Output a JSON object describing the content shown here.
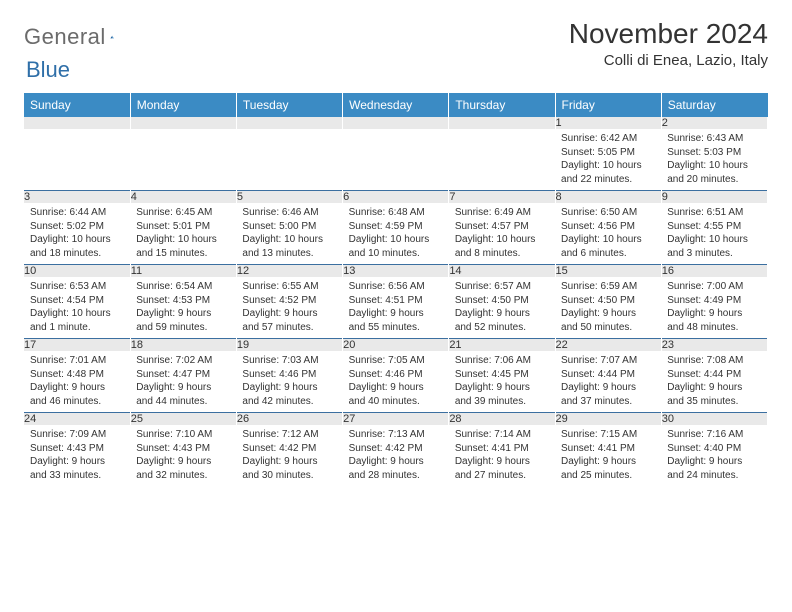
{
  "logo": {
    "text1": "General",
    "text2": "Blue"
  },
  "header": {
    "month_title": "November 2024",
    "location": "Colli di Enea, Lazio, Italy"
  },
  "colors": {
    "header_bg": "#3b8bc4",
    "header_text": "#ffffff",
    "daynum_bg": "#e9e9e9",
    "rule": "#3b6fa0",
    "logo_gray": "#6b6b6b",
    "logo_blue": "#2f6fa8"
  },
  "day_headers": [
    "Sunday",
    "Monday",
    "Tuesday",
    "Wednesday",
    "Thursday",
    "Friday",
    "Saturday"
  ],
  "weeks": [
    [
      {
        "n": "",
        "lines": []
      },
      {
        "n": "",
        "lines": []
      },
      {
        "n": "",
        "lines": []
      },
      {
        "n": "",
        "lines": []
      },
      {
        "n": "",
        "lines": []
      },
      {
        "n": "1",
        "lines": [
          "Sunrise: 6:42 AM",
          "Sunset: 5:05 PM",
          "Daylight: 10 hours",
          "and 22 minutes."
        ]
      },
      {
        "n": "2",
        "lines": [
          "Sunrise: 6:43 AM",
          "Sunset: 5:03 PM",
          "Daylight: 10 hours",
          "and 20 minutes."
        ]
      }
    ],
    [
      {
        "n": "3",
        "lines": [
          "Sunrise: 6:44 AM",
          "Sunset: 5:02 PM",
          "Daylight: 10 hours",
          "and 18 minutes."
        ]
      },
      {
        "n": "4",
        "lines": [
          "Sunrise: 6:45 AM",
          "Sunset: 5:01 PM",
          "Daylight: 10 hours",
          "and 15 minutes."
        ]
      },
      {
        "n": "5",
        "lines": [
          "Sunrise: 6:46 AM",
          "Sunset: 5:00 PM",
          "Daylight: 10 hours",
          "and 13 minutes."
        ]
      },
      {
        "n": "6",
        "lines": [
          "Sunrise: 6:48 AM",
          "Sunset: 4:59 PM",
          "Daylight: 10 hours",
          "and 10 minutes."
        ]
      },
      {
        "n": "7",
        "lines": [
          "Sunrise: 6:49 AM",
          "Sunset: 4:57 PM",
          "Daylight: 10 hours",
          "and 8 minutes."
        ]
      },
      {
        "n": "8",
        "lines": [
          "Sunrise: 6:50 AM",
          "Sunset: 4:56 PM",
          "Daylight: 10 hours",
          "and 6 minutes."
        ]
      },
      {
        "n": "9",
        "lines": [
          "Sunrise: 6:51 AM",
          "Sunset: 4:55 PM",
          "Daylight: 10 hours",
          "and 3 minutes."
        ]
      }
    ],
    [
      {
        "n": "10",
        "lines": [
          "Sunrise: 6:53 AM",
          "Sunset: 4:54 PM",
          "Daylight: 10 hours",
          "and 1 minute."
        ]
      },
      {
        "n": "11",
        "lines": [
          "Sunrise: 6:54 AM",
          "Sunset: 4:53 PM",
          "Daylight: 9 hours",
          "and 59 minutes."
        ]
      },
      {
        "n": "12",
        "lines": [
          "Sunrise: 6:55 AM",
          "Sunset: 4:52 PM",
          "Daylight: 9 hours",
          "and 57 minutes."
        ]
      },
      {
        "n": "13",
        "lines": [
          "Sunrise: 6:56 AM",
          "Sunset: 4:51 PM",
          "Daylight: 9 hours",
          "and 55 minutes."
        ]
      },
      {
        "n": "14",
        "lines": [
          "Sunrise: 6:57 AM",
          "Sunset: 4:50 PM",
          "Daylight: 9 hours",
          "and 52 minutes."
        ]
      },
      {
        "n": "15",
        "lines": [
          "Sunrise: 6:59 AM",
          "Sunset: 4:50 PM",
          "Daylight: 9 hours",
          "and 50 minutes."
        ]
      },
      {
        "n": "16",
        "lines": [
          "Sunrise: 7:00 AM",
          "Sunset: 4:49 PM",
          "Daylight: 9 hours",
          "and 48 minutes."
        ]
      }
    ],
    [
      {
        "n": "17",
        "lines": [
          "Sunrise: 7:01 AM",
          "Sunset: 4:48 PM",
          "Daylight: 9 hours",
          "and 46 minutes."
        ]
      },
      {
        "n": "18",
        "lines": [
          "Sunrise: 7:02 AM",
          "Sunset: 4:47 PM",
          "Daylight: 9 hours",
          "and 44 minutes."
        ]
      },
      {
        "n": "19",
        "lines": [
          "Sunrise: 7:03 AM",
          "Sunset: 4:46 PM",
          "Daylight: 9 hours",
          "and 42 minutes."
        ]
      },
      {
        "n": "20",
        "lines": [
          "Sunrise: 7:05 AM",
          "Sunset: 4:46 PM",
          "Daylight: 9 hours",
          "and 40 minutes."
        ]
      },
      {
        "n": "21",
        "lines": [
          "Sunrise: 7:06 AM",
          "Sunset: 4:45 PM",
          "Daylight: 9 hours",
          "and 39 minutes."
        ]
      },
      {
        "n": "22",
        "lines": [
          "Sunrise: 7:07 AM",
          "Sunset: 4:44 PM",
          "Daylight: 9 hours",
          "and 37 minutes."
        ]
      },
      {
        "n": "23",
        "lines": [
          "Sunrise: 7:08 AM",
          "Sunset: 4:44 PM",
          "Daylight: 9 hours",
          "and 35 minutes."
        ]
      }
    ],
    [
      {
        "n": "24",
        "lines": [
          "Sunrise: 7:09 AM",
          "Sunset: 4:43 PM",
          "Daylight: 9 hours",
          "and 33 minutes."
        ]
      },
      {
        "n": "25",
        "lines": [
          "Sunrise: 7:10 AM",
          "Sunset: 4:43 PM",
          "Daylight: 9 hours",
          "and 32 minutes."
        ]
      },
      {
        "n": "26",
        "lines": [
          "Sunrise: 7:12 AM",
          "Sunset: 4:42 PM",
          "Daylight: 9 hours",
          "and 30 minutes."
        ]
      },
      {
        "n": "27",
        "lines": [
          "Sunrise: 7:13 AM",
          "Sunset: 4:42 PM",
          "Daylight: 9 hours",
          "and 28 minutes."
        ]
      },
      {
        "n": "28",
        "lines": [
          "Sunrise: 7:14 AM",
          "Sunset: 4:41 PM",
          "Daylight: 9 hours",
          "and 27 minutes."
        ]
      },
      {
        "n": "29",
        "lines": [
          "Sunrise: 7:15 AM",
          "Sunset: 4:41 PM",
          "Daylight: 9 hours",
          "and 25 minutes."
        ]
      },
      {
        "n": "30",
        "lines": [
          "Sunrise: 7:16 AM",
          "Sunset: 4:40 PM",
          "Daylight: 9 hours",
          "and 24 minutes."
        ]
      }
    ]
  ]
}
